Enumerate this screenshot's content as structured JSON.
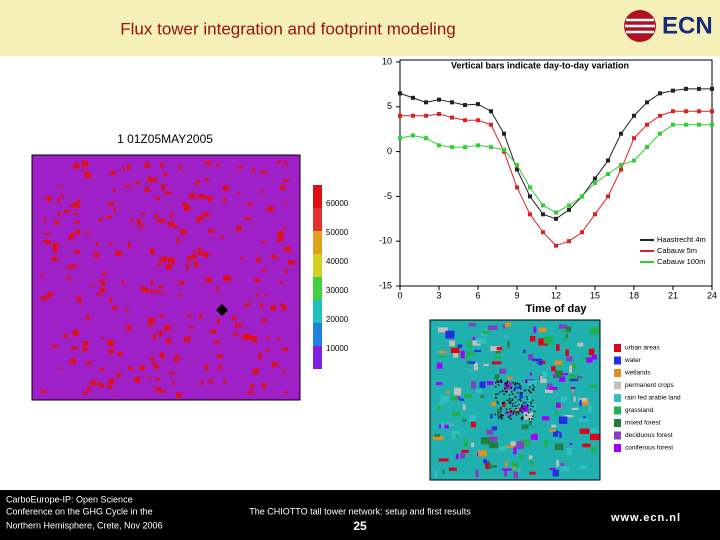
{
  "header": {
    "title": "Flux tower integration and footprint modeling",
    "logo": "ECN"
  },
  "footprint_map": {
    "title": "1 01Z05MAY2005",
    "colorbar_labels": [
      "60000",
      "50000",
      "40000",
      "30000",
      "20000",
      "10000"
    ]
  },
  "line_chart": {
    "title": "Vertical bars indicate day-to-day variation",
    "x_label": "Time of day",
    "xlim": [
      0,
      24
    ],
    "xticks": [
      0,
      3,
      6,
      9,
      12,
      15,
      18,
      21,
      24
    ],
    "ylim": [
      -15,
      10
    ],
    "yticks": [
      -15,
      -10,
      -5,
      0,
      5,
      10
    ],
    "x": [
      0,
      1,
      2,
      3,
      4,
      5,
      6,
      7,
      8,
      9,
      10,
      11,
      12,
      13,
      14,
      15,
      16,
      17,
      18,
      19,
      20,
      21,
      22,
      23,
      24
    ],
    "series": [
      {
        "name": "Haastrecht 4m",
        "color": "#222222",
        "values": [
          6.5,
          6,
          5.5,
          5.8,
          5.5,
          5.2,
          5.3,
          4.5,
          2,
          -2,
          -5,
          -7,
          -7.5,
          -6.5,
          -5,
          -3,
          -1,
          2,
          4,
          5.5,
          6.5,
          6.8,
          7,
          7,
          7
        ]
      },
      {
        "name": "Cabauw 5m",
        "color": "#e02020",
        "values": [
          4,
          4,
          4,
          4.2,
          3.8,
          3.5,
          3.5,
          3,
          0,
          -4,
          -7,
          -9,
          -10.5,
          -10,
          -9,
          -7,
          -5,
          -2,
          1.5,
          3,
          4,
          4.5,
          4.5,
          4.5,
          4.5
        ]
      },
      {
        "name": "Cabauw 100m",
        "color": "#30d030",
        "values": [
          1.5,
          1.8,
          1.5,
          0.7,
          0.5,
          0.5,
          0.7,
          0.5,
          0.2,
          -1.5,
          -4,
          -6,
          -6.8,
          -6,
          -5,
          -3.5,
          -2.5,
          -1.5,
          -1,
          0.5,
          2,
          3,
          3,
          3,
          3
        ]
      }
    ]
  },
  "land_use_map": {
    "legend": [
      {
        "label": "urban areas",
        "color": "#e0001a"
      },
      {
        "label": "water",
        "color": "#2030e0"
      },
      {
        "label": "wetlands",
        "color": "#e09020"
      },
      {
        "label": "permanent crops",
        "color": "#c0c0c0"
      },
      {
        "label": "rain fed arable land",
        "color": "#30c0c0"
      },
      {
        "label": "grassland",
        "color": "#20b050"
      },
      {
        "label": "mixed forest",
        "color": "#208040"
      },
      {
        "label": "deciduous forest",
        "color": "#8040c0"
      },
      {
        "label": "coniferous forest",
        "color": "#a000ff"
      }
    ]
  },
  "footer": {
    "conference": [
      "CarboEurope-IP: Open Science",
      "Conference on the GHG Cycle in the",
      "Northern Hemisphere, Crete, Nov 2006"
    ],
    "talk": "The CHIOTTO tall tower network: setup and first results",
    "page": "25",
    "website": "www.ecn.nl"
  }
}
